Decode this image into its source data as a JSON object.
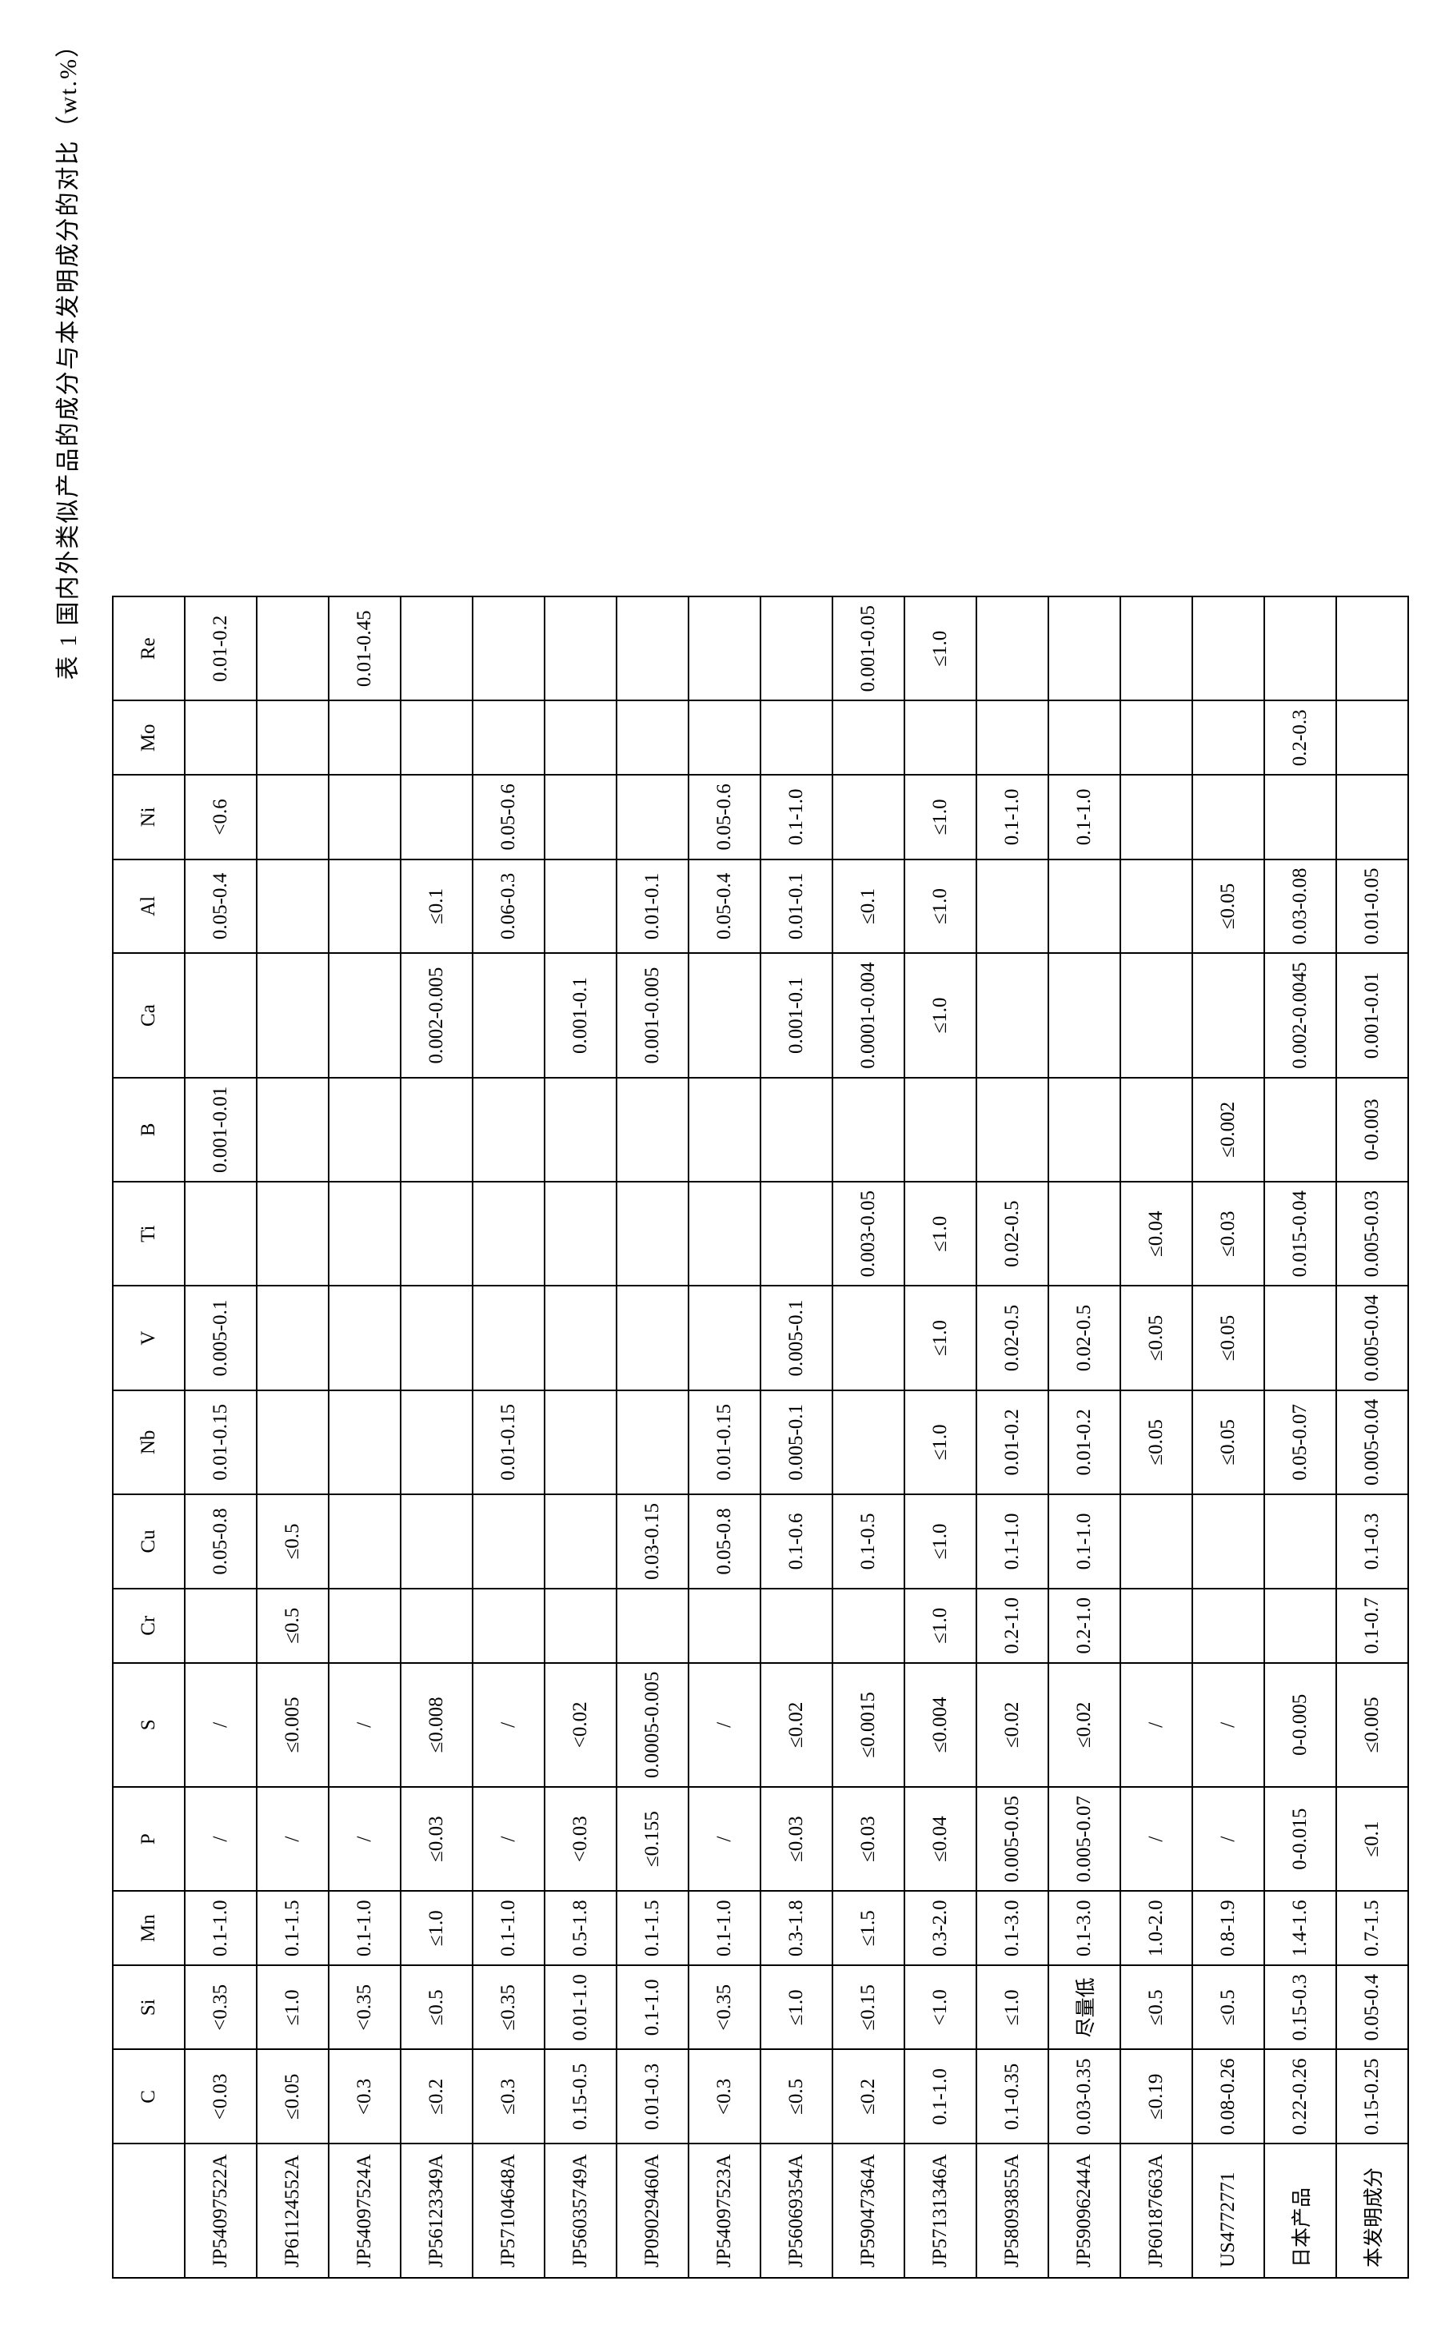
{
  "caption": "表 1  国内外类似产品的成分与本发明成分的对比（wt.%）",
  "table": {
    "columns": [
      "",
      "C",
      "Si",
      "Mn",
      "P",
      "S",
      "Cr",
      "Cu",
      "Nb",
      "V",
      "Ti",
      "B",
      "Ca",
      "Al",
      "Ni",
      "Mo",
      "Re"
    ],
    "rows": [
      [
        "JP54097522A",
        "<0.03",
        "<0.35",
        "0.1-1.0",
        "/",
        "/",
        "",
        "0.05-0.8",
        "0.01-0.15",
        "0.005-0.1",
        "",
        "0.001-0.01",
        "",
        "0.05-0.4",
        "<0.6",
        "",
        "0.01-0.2"
      ],
      [
        "JP61124552A",
        "≤0.05",
        "≤1.0",
        "0.1-1.5",
        "/",
        "≤0.005",
        "≤0.5",
        "≤0.5",
        "",
        "",
        "",
        "",
        "",
        "",
        "",
        "",
        ""
      ],
      [
        "JP54097524A",
        "<0.3",
        "<0.35",
        "0.1-1.0",
        "/",
        "/",
        "",
        "",
        "",
        "",
        "",
        "",
        "",
        "",
        "",
        "",
        "0.01-0.45"
      ],
      [
        "JP56123349A",
        "≤0.2",
        "≤0.5",
        "≤1.0",
        "≤0.03",
        "≤0.008",
        "",
        "",
        "",
        "",
        "",
        "",
        "0.002-0.005",
        "≤0.1",
        "",
        "",
        ""
      ],
      [
        "JP57104648A",
        "≤0.3",
        "≤0.35",
        "0.1-1.0",
        "/",
        "/",
        "",
        "",
        "0.01-0.15",
        "",
        "",
        "",
        "",
        "0.06-0.3",
        "0.05-0.6",
        "",
        ""
      ],
      [
        "JP56035749A",
        "0.15-0.5",
        "0.01-1.0",
        "0.5-1.8",
        "<0.03",
        "<0.02",
        "",
        "",
        "",
        "",
        "",
        "",
        "0.001-0.1",
        "",
        "",
        "",
        ""
      ],
      [
        "JP09029460A",
        "0.01-0.3",
        "0.1-1.0",
        "0.1-1.5",
        "≤0.155",
        "0.0005-0.005",
        "",
        "0.03-0.15",
        "",
        "",
        "",
        "",
        "0.001-0.005",
        "0.01-0.1",
        "",
        "",
        ""
      ],
      [
        "JP54097523A",
        "<0.3",
        "<0.35",
        "0.1-1.0",
        "/",
        "/",
        "",
        "0.05-0.8",
        "0.01-0.15",
        "",
        "",
        "",
        "",
        "0.05-0.4",
        "0.05-0.6",
        "",
        ""
      ],
      [
        "JP56069354A",
        "≤0.5",
        "≤1.0",
        "0.3-1.8",
        "≤0.03",
        "≤0.02",
        "",
        "0.1-0.6",
        "0.005-0.1",
        "0.005-0.1",
        "",
        "",
        "0.001-0.1",
        "0.01-0.1",
        "0.1-1.0",
        "",
        ""
      ],
      [
        "JP59047364A",
        "≤0.2",
        "≤0.15",
        "≤1.5",
        "≤0.03",
        "≤0.0015",
        "",
        "0.1-0.5",
        "",
        "",
        "0.003-0.05",
        "",
        "0.0001-0.004",
        "≤0.1",
        "",
        "",
        "0.001-0.05"
      ],
      [
        "JP57131346A",
        "0.1-1.0",
        "<1.0",
        "0.3-2.0",
        "≤0.04",
        "≤0.004",
        "≤1.0",
        "≤1.0",
        "≤1.0",
        "≤1.0",
        "≤1.0",
        "",
        "≤1.0",
        "≤1.0",
        "≤1.0",
        "",
        "≤1.0"
      ],
      [
        "JP58093855A",
        "0.1-0.35",
        "≤1.0",
        "0.1-3.0",
        "0.005-0.05",
        "≤0.02",
        "0.2-1.0",
        "0.1-1.0",
        "0.01-0.2",
        "0.02-0.5",
        "0.02-0.5",
        "",
        "",
        "",
        "0.1-1.0",
        "",
        ""
      ],
      [
        "JP59096244A",
        "0.03-0.35",
        "尽量低",
        "0.1-3.0",
        "0.005-0.07",
        "≤0.02",
        "0.2-1.0",
        "0.1-1.0",
        "0.01-0.2",
        "0.02-0.5",
        "",
        "",
        "",
        "",
        "0.1-1.0",
        "",
        ""
      ],
      [
        "JP60187663A",
        "≤0.19",
        "≤0.5",
        "1.0-2.0",
        "/",
        "/",
        "",
        "",
        "≤0.05",
        "≤0.05",
        "≤0.04",
        "",
        "",
        "",
        "",
        "",
        ""
      ],
      [
        "US4772771",
        "0.08-0.26",
        "≤0.5",
        "0.8-1.9",
        "/",
        "/",
        "",
        "",
        "≤0.05",
        "≤0.05",
        "≤0.03",
        "≤0.002",
        "",
        "≤0.05",
        "",
        "",
        ""
      ],
      [
        "日本产品",
        "0.22-0.26",
        "0.15-0.3",
        "1.4-1.6",
        "0-0.015",
        "0-0.005",
        "",
        "",
        "0.05-0.07",
        "",
        "0.015-0.04",
        "",
        "0.002-0.0045",
        "0.03-0.08",
        "",
        "0.2-0.3",
        ""
      ],
      [
        "本发明成分",
        "0.15-0.25",
        "0.05-0.4",
        "0.7-1.5",
        "≤0.1",
        "≤0.005",
        "0.1-0.7",
        "0.1-0.3",
        "0.005-0.04",
        "0.005-0.04",
        "0.005-0.03",
        "0-0.003",
        "0.001-0.01",
        "0.01-0.05",
        "",
        "",
        ""
      ]
    ]
  }
}
